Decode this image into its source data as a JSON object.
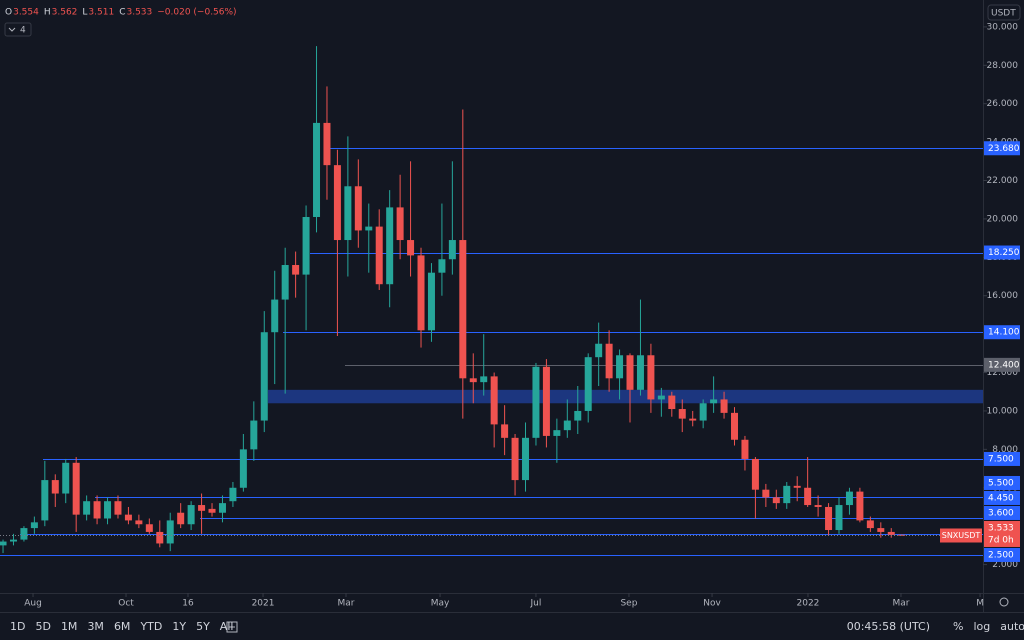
{
  "chart_data": {
    "type": "candlestick",
    "series": [
      {
        "name": "SNXUSDT",
        "open": [
          3.0,
          3.2,
          3.3,
          3.9,
          4.3,
          6.4,
          5.7,
          7.3,
          4.6,
          5.3,
          4.4,
          5.3,
          4.6,
          4.3,
          4.1,
          3.7,
          3.1,
          4.7,
          4.1,
          5.1,
          4.9,
          4.7,
          5.3,
          6.0,
          8.0,
          9.5,
          14.1,
          15.8,
          17.6,
          17.1,
          20.1,
          25.0,
          22.8,
          18.9,
          21.7,
          19.4,
          19.6,
          16.6,
          20.6,
          18.9,
          18.1,
          14.2,
          17.2,
          17.9,
          18.9,
          11.7,
          11.5,
          11.8,
          9.3,
          8.6,
          6.4,
          8.6,
          12.3,
          8.7,
          9.0,
          9.5,
          10.0,
          12.8,
          13.5,
          11.7,
          12.9,
          11.1,
          12.9,
          10.6,
          10.8,
          10.1,
          9.6,
          9.5,
          10.4,
          10.6,
          9.9,
          8.5,
          7.5,
          5.9,
          5.5,
          5.2,
          6.1,
          6.0,
          5.1,
          5.0,
          3.8,
          5.1,
          5.8,
          4.3,
          3.9,
          3.7,
          3.554
        ],
        "high": [
          3.3,
          3.6,
          4.0,
          4.5,
          7.4,
          6.7,
          7.5,
          7.6,
          5.6,
          5.6,
          5.5,
          5.6,
          5.0,
          4.6,
          4.4,
          4.3,
          4.7,
          5.2,
          5.3,
          5.7,
          5.2,
          5.6,
          6.3,
          8.8,
          10.5,
          15.2,
          17.3,
          18.5,
          18.3,
          20.7,
          29.0,
          26.9,
          23.6,
          24.3,
          23.1,
          20.8,
          20.5,
          21.5,
          22.3,
          23.0,
          18.5,
          17.7,
          20.8,
          23.0,
          25.7,
          13.0,
          14.0,
          12.0,
          10.3,
          8.8,
          9.4,
          12.5,
          12.7,
          9.6,
          10.6,
          11.3,
          13.0,
          14.6,
          14.2,
          13.2,
          13.0,
          15.8,
          13.5,
          11.2,
          11.0,
          10.6,
          10.0,
          10.6,
          11.8,
          11.0,
          10.2,
          8.7,
          7.6,
          6.2,
          5.9,
          6.3,
          6.6,
          7.6,
          5.6,
          5.2,
          5.5,
          6.0,
          6.0,
          4.5,
          4.2,
          3.9,
          3.562
        ],
        "low": [
          2.6,
          3.0,
          3.2,
          3.6,
          4.0,
          5.0,
          5.2,
          3.7,
          4.3,
          4.1,
          4.1,
          4.4,
          4.1,
          3.9,
          3.6,
          2.9,
          2.7,
          3.9,
          3.8,
          3.6,
          4.5,
          4.2,
          5.0,
          5.8,
          7.4,
          8.9,
          11.4,
          10.9,
          15.9,
          14.2,
          19.3,
          21.0,
          13.9,
          17.0,
          18.5,
          17.2,
          16.3,
          15.4,
          17.9,
          17.0,
          13.3,
          13.6,
          16.0,
          17.1,
          9.6,
          10.4,
          10.8,
          8.1,
          7.7,
          5.6,
          5.8,
          8.2,
          8.1,
          7.3,
          8.6,
          8.8,
          9.4,
          11.3,
          11.0,
          10.6,
          9.4,
          10.8,
          9.9,
          9.7,
          9.7,
          8.9,
          9.2,
          9.1,
          9.9,
          9.6,
          8.2,
          6.9,
          4.4,
          5.0,
          4.9,
          4.9,
          5.3,
          5.0,
          4.5,
          3.5,
          3.6,
          4.6,
          4.2,
          3.7,
          3.4,
          3.4,
          3.511
        ],
        "close": [
          3.2,
          3.3,
          3.9,
          4.2,
          6.4,
          5.7,
          7.3,
          4.6,
          5.3,
          4.4,
          5.3,
          4.6,
          4.3,
          4.1,
          3.7,
          3.1,
          4.3,
          4.1,
          5.1,
          4.8,
          4.7,
          5.2,
          6.0,
          8.0,
          9.5,
          14.1,
          15.8,
          17.6,
          17.1,
          20.1,
          25.0,
          22.8,
          18.9,
          21.7,
          19.4,
          19.6,
          16.6,
          20.6,
          18.9,
          18.1,
          14.2,
          17.2,
          17.9,
          18.9,
          11.7,
          11.5,
          11.8,
          9.3,
          8.6,
          6.4,
          8.6,
          12.3,
          8.7,
          9.0,
          9.5,
          10.0,
          12.8,
          13.5,
          11.7,
          12.9,
          11.1,
          12.9,
          10.6,
          10.8,
          10.1,
          9.6,
          9.5,
          10.4,
          10.6,
          9.9,
          8.5,
          7.5,
          5.9,
          5.5,
          5.2,
          6.1,
          6.0,
          5.1,
          5.0,
          3.8,
          5.1,
          5.8,
          4.3,
          3.9,
          3.7,
          3.55,
          3.533
        ]
      }
    ],
    "up_color": "#26a69a",
    "down_color": "#ef5350",
    "ylim": [
      0.52,
      31.4
    ],
    "yticks": [
      {
        "value": 2,
        "label": "2.000"
      },
      {
        "value": 6,
        "label": "6.000"
      },
      {
        "value": 8,
        "label": "8.000"
      },
      {
        "value": 10,
        "label": "10.000"
      },
      {
        "value": 12,
        "label": "12.000"
      },
      {
        "value": 16,
        "label": "16.000"
      },
      {
        "value": 18,
        "label": "18.000"
      },
      {
        "value": 20,
        "label": "20.000"
      },
      {
        "value": 22,
        "label": "22.000"
      },
      {
        "value": 24,
        "label": "24.000"
      },
      {
        "value": 26,
        "label": "26.000"
      },
      {
        "value": 28,
        "label": "28.000"
      },
      {
        "value": 30,
        "label": "30.000"
      }
    ],
    "xlim": [
      -0.29,
      93.78
    ],
    "xticks": [
      {
        "value": 2.87,
        "label": "Aug"
      },
      {
        "value": 11.77,
        "label": "Oct"
      },
      {
        "value": 17.7,
        "label": "16"
      },
      {
        "value": 24.88,
        "label": "2021"
      },
      {
        "value": 32.82,
        "label": "Mar"
      },
      {
        "value": 41.82,
        "label": "May"
      },
      {
        "value": 51.0,
        "label": "Jul"
      },
      {
        "value": 59.9,
        "label": "Sep"
      },
      {
        "value": 67.85,
        "label": "Nov"
      },
      {
        "value": 77.03,
        "label": "2022"
      },
      {
        "value": 85.93,
        "label": "Mar"
      },
      {
        "value": 93.5,
        "label": "M"
      }
    ],
    "levels": [
      {
        "value": 23.68,
        "label": "23.680",
        "color": "#2962ff"
      },
      {
        "value": 18.25,
        "label": "18.250",
        "color": "#2962ff"
      },
      {
        "value": 14.1,
        "label": "14.100",
        "color": "#2962ff"
      },
      {
        "value": 12.4,
        "label": "12.400",
        "color": "#5d606b"
      },
      {
        "value": 7.5,
        "label": "7.500",
        "color": "#2962ff"
      },
      {
        "value": 5.5,
        "label": "5.500",
        "color": "#2962ff"
      },
      {
        "value": 4.45,
        "label": "4.450",
        "color": "#2962ff"
      },
      {
        "value": 3.6,
        "label": "3.600",
        "color": "#2962ff"
      },
      {
        "value": 2.5,
        "label": "2.500",
        "color": "#2962ff"
      }
    ],
    "zone": {
      "from": 10.4,
      "to": 11.1,
      "color": "#1e3a8a"
    },
    "change_label": "−0.020 (−0.56%)",
    "countdown": "7d 0h",
    "currency": "USDT",
    "indicator_count": 4
  },
  "ui": {
    "legend_keys": [
      "O",
      "H",
      "L",
      "C"
    ],
    "ranges": [
      "1D",
      "5D",
      "1M",
      "3M",
      "6M",
      "YTD",
      "1Y",
      "5Y",
      "All"
    ],
    "clock": "00:45:58 (UTC)",
    "scale_buttons": [
      "%",
      "log",
      "auto"
    ]
  }
}
